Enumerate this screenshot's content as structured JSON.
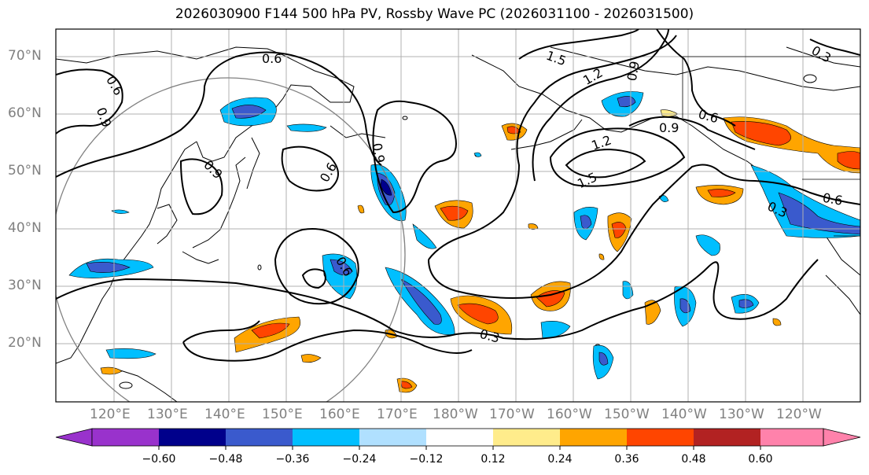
{
  "title": "2026030900 F144 500 hPa PV, Rossby Wave PC (2026031100 - 2026031500)",
  "lat_labels": [
    "70°N",
    "60°N",
    "50°N",
    "40°N",
    "30°N",
    "20°N"
  ],
  "lon_labels": [
    "120°E",
    "130°E",
    "140°E",
    "150°E",
    "160°E",
    "170°E",
    "180°W",
    "170°W",
    "160°W",
    "150°W",
    "140°W",
    "130°W",
    "120°W"
  ],
  "contour_labels": [
    "0.6",
    "0.6",
    "0.9",
    "0.9",
    "0.6",
    "0.9",
    "0.6",
    "0.3",
    "1.5",
    "1.2",
    "0.9",
    "0.9",
    "1.2",
    "1.5",
    "0.6",
    "0.6",
    "0.3",
    "0.3"
  ],
  "colorbar": {
    "ticks": [
      "−0.60",
      "−0.48",
      "−0.36",
      "−0.24",
      "−0.12",
      "0.12",
      "0.24",
      "0.36",
      "0.48",
      "0.60"
    ],
    "colors": [
      "#9932cc",
      "#00008b",
      "#3a5acd",
      "#00bfff",
      "#b0e0ff",
      "#ffffff",
      "#ffec8b",
      "#ffa500",
      "#ff4500",
      "#b22222",
      "#ff82ab"
    ]
  },
  "palette": {
    "neg_strong": "#3a5acd",
    "neg_mid": "#00bfff",
    "neg_weak": "#b0e0ff",
    "neg_core": "#00008b",
    "pos_weak": "#ffec8b",
    "pos_mid": "#ffa500",
    "pos_strong": "#ff4500"
  }
}
